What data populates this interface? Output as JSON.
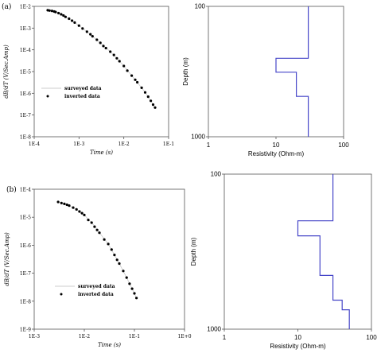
{
  "panel_labels": [
    "(a)",
    "(b)"
  ],
  "chart_data": [
    {
      "type": "scatter",
      "panel": "(a)",
      "title": "",
      "xlabel": "Time (s)",
      "ylabel": "dB/dT (V/Sec.Amp)",
      "x_scale": "log",
      "y_scale": "log",
      "xlim": [
        0.0001,
        0.1
      ],
      "ylim": [
        1e-08,
        0.01
      ],
      "x_tick_labels": [
        "1E-4",
        "1E-3",
        "1E-2",
        "1E-1"
      ],
      "y_tick_labels": [
        "1E-2",
        "1E-3",
        "1E-4",
        "1E-5",
        "1E-6",
        "1E-7",
        "1E-8"
      ],
      "grid": false,
      "legend": "center-left",
      "series": [
        {
          "name": "surveyed data",
          "style": "line",
          "color": "#c8c8c8",
          "x": [
            0.0002,
            0.00025,
            0.0003,
            0.0004,
            0.0005,
            0.0007,
            0.001,
            0.0015,
            0.002,
            0.003,
            0.005,
            0.007,
            0.01,
            0.015,
            0.02,
            0.03,
            0.04,
            0.05
          ],
          "y": [
            0.0066,
            0.0062,
            0.0055,
            0.0043,
            0.0033,
            0.0022,
            0.0013,
            0.00068,
            0.00042,
            0.00021,
            8.2e-05,
            4.1e-05,
            1.8e-05,
            6.5e-06,
            3.2e-06,
            1.1e-06,
            4.5e-07,
            2.2e-07
          ]
        },
        {
          "name": "inverted data",
          "style": "dots",
          "color": "#000000",
          "x": [
            0.0002,
            0.00022,
            0.00025,
            0.00028,
            0.0003,
            0.00035,
            0.0004,
            0.00045,
            0.0005,
            0.0006,
            0.0007,
            0.0008,
            0.001,
            0.0012,
            0.0015,
            0.0018,
            0.002,
            0.0025,
            0.003,
            0.0035,
            0.004,
            0.005,
            0.006,
            0.007,
            0.008,
            0.01,
            0.012,
            0.015,
            0.018,
            0.02,
            0.025,
            0.03,
            0.035,
            0.04,
            0.045,
            0.05
          ],
          "y": [
            0.0066,
            0.0064,
            0.0062,
            0.0058,
            0.0055,
            0.0049,
            0.0043,
            0.0038,
            0.0033,
            0.0027,
            0.0022,
            0.0018,
            0.0013,
            0.00095,
            0.00068,
            0.00052,
            0.00042,
            0.00029,
            0.00021,
            0.00015,
            0.00012,
            8.2e-05,
            5.8e-05,
            4.1e-05,
            3e-05,
            1.8e-05,
            1.1e-05,
            6.5e-06,
            4.2e-06,
            3.2e-06,
            1.8e-06,
            1.1e-06,
            7e-07,
            4.5e-07,
            3e-07,
            2.2e-07
          ]
        }
      ]
    },
    {
      "type": "line",
      "panel": "(a)",
      "title": "",
      "xlabel": "Resistivity (Ohm-m)",
      "ylabel": "Depth (m)",
      "x_scale": "log",
      "y_scale": "log",
      "y_inverted": true,
      "xlim": [
        1,
        100
      ],
      "ylim": [
        100,
        1000
      ],
      "x_tick_labels": [
        "1",
        "10",
        "100"
      ],
      "y_tick_labels": [
        "100",
        "1000"
      ],
      "grid": false,
      "series": [
        {
          "name": "",
          "color": "#4646c8",
          "x": [
            30,
            30,
            10,
            10,
            20,
            20,
            30,
            30
          ],
          "y": [
            100,
            250,
            250,
            320,
            320,
            490,
            490,
            1000
          ]
        }
      ]
    },
    {
      "type": "scatter",
      "panel": "(b)",
      "title": "",
      "xlabel": "Time (s)",
      "ylabel": "dB/dT (V/Sec.Amp)",
      "x_scale": "log",
      "y_scale": "log",
      "xlim": [
        0.001,
        1
      ],
      "ylim": [
        1e-09,
        0.0001
      ],
      "x_tick_labels": [
        "1E-3",
        "1E-2",
        "1E-1",
        "1E+0"
      ],
      "y_tick_labels": [
        "1E-4",
        "1E-5",
        "1E-6",
        "1E-7",
        "1E-8",
        "1E-9"
      ],
      "grid": false,
      "legend": "bottom-right",
      "series": [
        {
          "name": "surveyed data",
          "style": "line",
          "color": "#c8c8c8",
          "x": [
            0.003,
            0.004,
            0.005,
            0.007,
            0.01,
            0.015,
            0.02,
            0.03,
            0.04,
            0.05,
            0.07,
            0.09,
            0.11
          ],
          "y": [
            3.5e-05,
            3e-05,
            2.6e-05,
            1.9e-05,
            1.2e-05,
            5.5e-06,
            2.8e-06,
            1.1e-06,
            4.5e-07,
            2.2e-07,
            7e-08,
            2.8e-08,
            1.3e-08
          ]
        },
        {
          "name": "inverted data",
          "style": "dots",
          "color": "#000000",
          "x": [
            0.003,
            0.0035,
            0.004,
            0.0045,
            0.005,
            0.006,
            0.007,
            0.008,
            0.009,
            0.01,
            0.012,
            0.014,
            0.016,
            0.018,
            0.02,
            0.025,
            0.03,
            0.035,
            0.04,
            0.045,
            0.05,
            0.06,
            0.07,
            0.08,
            0.09,
            0.1,
            0.11
          ],
          "y": [
            3.5e-05,
            3.2e-05,
            3e-05,
            2.8e-05,
            2.6e-05,
            2.2e-05,
            1.9e-05,
            1.6e-05,
            1.4e-05,
            1.2e-05,
            8e-06,
            6.4e-06,
            4.6e-06,
            3.5e-06,
            2.8e-06,
            1.6e-06,
            1.1e-06,
            7e-07,
            4.5e-07,
            3e-07,
            2.2e-07,
            1.2e-07,
            7e-08,
            4.2e-08,
            2.8e-08,
            1.9e-08,
            1.3e-08
          ]
        }
      ]
    },
    {
      "type": "line",
      "panel": "(b)",
      "title": "",
      "xlabel": "Resistivity (Ohm-m)",
      "ylabel": "Depth (m)",
      "x_scale": "log",
      "y_scale": "log",
      "y_inverted": true,
      "xlim": [
        1,
        100
      ],
      "ylim": [
        100,
        1000
      ],
      "x_tick_labels": [
        "1",
        "10",
        "100"
      ],
      "y_tick_labels": [
        "100",
        "1000"
      ],
      "grid": false,
      "series": [
        {
          "name": "",
          "color": "#4646c8",
          "x": [
            30,
            30,
            10,
            10,
            20,
            20,
            30,
            30,
            40,
            40,
            50,
            50
          ],
          "y": [
            100,
            200,
            200,
            250,
            250,
            450,
            450,
            650,
            650,
            750,
            750,
            1000
          ]
        }
      ]
    }
  ]
}
